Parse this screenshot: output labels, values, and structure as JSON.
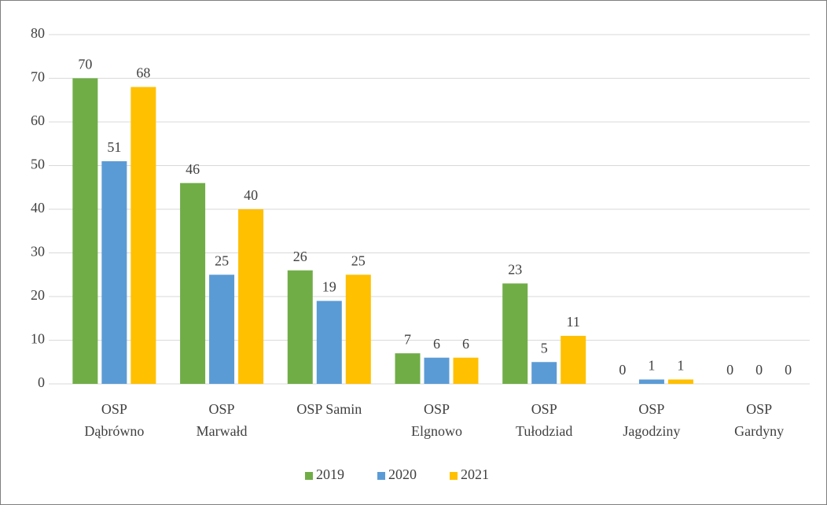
{
  "chart_data": {
    "type": "bar",
    "categories": [
      "OSP\nDąbrówno",
      "OSP\nMarwałd",
      "OSP Samin",
      "OSP\nElgnowo",
      "OSP\nTułodziad",
      "OSP\nJagodziny",
      "OSP\nGardyny"
    ],
    "series": [
      {
        "name": "2019",
        "color": "#70ad47",
        "values": [
          70,
          46,
          26,
          7,
          23,
          0,
          0
        ]
      },
      {
        "name": "2020",
        "color": "#5b9bd5",
        "values": [
          51,
          25,
          19,
          6,
          5,
          1,
          0
        ]
      },
      {
        "name": "2021",
        "color": "#ffc000",
        "values": [
          68,
          40,
          25,
          6,
          11,
          1,
          0
        ]
      }
    ],
    "ylim": [
      0,
      80
    ],
    "yticks": [
      0,
      10,
      20,
      30,
      40,
      50,
      60,
      70,
      80
    ],
    "grid": true,
    "legend": "bottom"
  }
}
